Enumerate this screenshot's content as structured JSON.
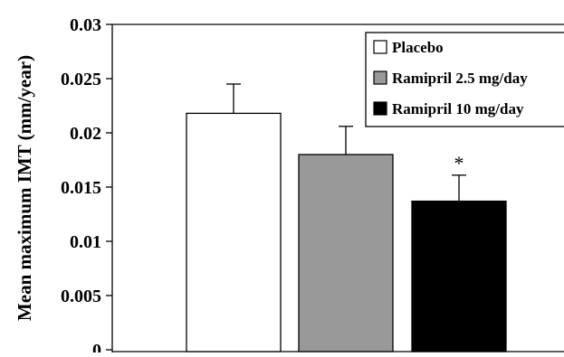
{
  "chart_data": {
    "type": "bar",
    "title": "",
    "xlabel": "",
    "ylabel": "Mean maximum IMT (mm/year)",
    "ylim": [
      0,
      0.03
    ],
    "yticks": [
      0,
      0.005,
      0.01,
      0.015,
      0.02,
      0.025,
      0.03
    ],
    "ytick_labels": [
      "0",
      "0.005",
      "0.01",
      "0.015",
      "0.02",
      "0.025",
      "0.03"
    ],
    "grid": false,
    "legend_position": "top-right",
    "series": [
      {
        "name": "Placebo",
        "value": 0.0218,
        "error": 0.0027,
        "color": "#ffffff"
      },
      {
        "name": "Ramipril 2.5 mg/day",
        "value": 0.018,
        "error": 0.0026,
        "color": "#999999"
      },
      {
        "name": "Ramipril 10 mg/day",
        "value": 0.0137,
        "error": 0.0024,
        "color": "#000000"
      }
    ],
    "annotations": [
      {
        "text": "*",
        "series_index": 2
      }
    ]
  }
}
